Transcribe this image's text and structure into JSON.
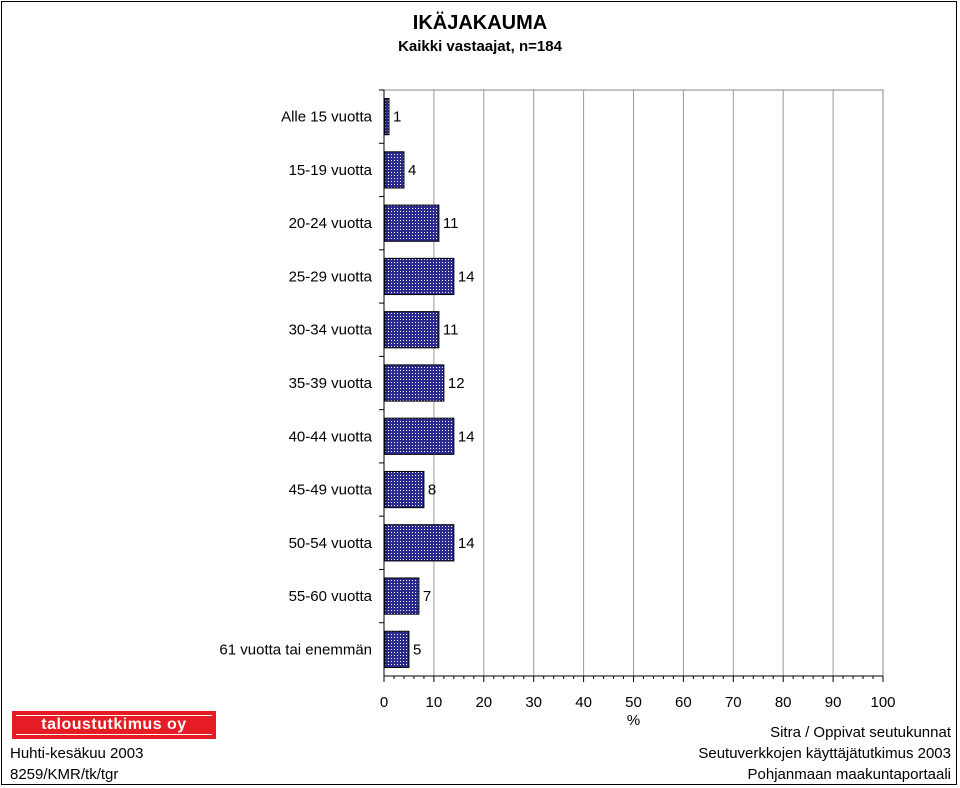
{
  "header": {
    "title": "IKÄJAKAUMA",
    "subtitle": "Kaikki vastaajat, n=184"
  },
  "chart_data": {
    "type": "bar",
    "orientation": "horizontal",
    "categories": [
      "Alle 15 vuotta",
      "15-19 vuotta",
      "20-24 vuotta",
      "25-29 vuotta",
      "30-34 vuotta",
      "35-39 vuotta",
      "40-44 vuotta",
      "45-49 vuotta",
      "50-54 vuotta",
      "55-60 vuotta",
      "61 vuotta tai enemmän"
    ],
    "values": [
      1,
      4,
      11,
      14,
      11,
      12,
      14,
      8,
      14,
      7,
      5
    ],
    "xlabel": "%",
    "xlim": [
      0,
      100
    ],
    "xticks": [
      0,
      10,
      20,
      30,
      40,
      50,
      60,
      70,
      80,
      90,
      100
    ],
    "grid": true,
    "data_labels": true,
    "bar_fill": "#2b2b8f",
    "bar_pattern": "crosshatch"
  },
  "footer": {
    "logo_text": "taloustutkimus oy",
    "logo_color": "#e51c23",
    "left_lines": [
      "Huhti-kesäkuu 2003",
      "8259/KMR/tk/tgr"
    ],
    "right_lines": [
      "Sitra / Oppivat seutukunnat",
      "Seutuverkkojen käyttäjätutkimus 2003",
      "Pohjanmaan maakuntaportaali"
    ]
  }
}
